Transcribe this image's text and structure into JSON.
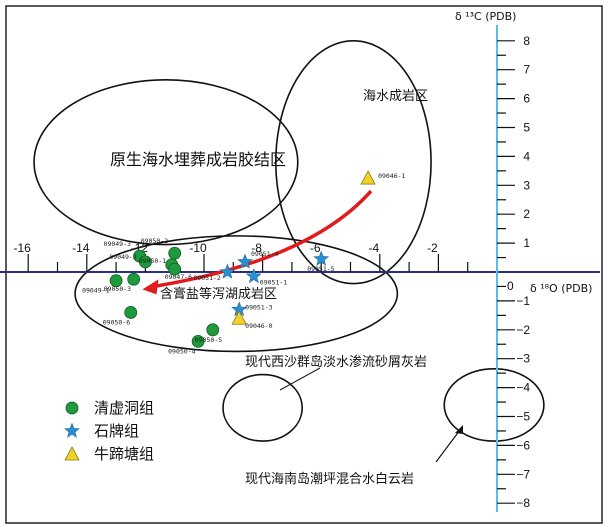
{
  "chart_data": {
    "type": "scatter",
    "x_axis": {
      "label": "δ ¹⁸O (PDB)",
      "range": [
        -17,
        0.5
      ],
      "ticks": [
        -16,
        -14,
        -12,
        -10,
        -8,
        -6,
        -4,
        -2
      ],
      "zero_label": "0"
    },
    "y_axis": {
      "label": "δ ¹³C (PDB)",
      "range": [
        -8,
        8
      ],
      "ticks": [
        8,
        7,
        6,
        5,
        4,
        3,
        2,
        1,
        -1,
        -2,
        -3,
        -4,
        -5,
        -6,
        -7,
        -8
      ]
    },
    "zones": [
      {
        "name": "原生海水埋葬成岩胶结区",
        "cx": -11.3,
        "cy": 3.8,
        "rx": 4.5,
        "ry": 2.85
      },
      {
        "name": "海水成岩区",
        "cx": -4.9,
        "cy": 3.8,
        "rx": 2.65,
        "ry": 4.2
      },
      {
        "name": "含膏盐等泻湖成岩区",
        "cx": -8.9,
        "cy": -0.75,
        "rx": 5.5,
        "ry": 2.0
      },
      {
        "name": "现代西沙群岛淡水渗流砂屑灰岩",
        "cx": -8.0,
        "cy": -4.7,
        "rx": 1.35,
        "ry": 1.15
      },
      {
        "name": "现代海南岛潮坪混合水白云岩",
        "cx": -0.1,
        "cy": -4.6,
        "rx": 1.7,
        "ry": 1.25
      }
    ],
    "series": [
      {
        "name": "清虚洞组",
        "marker": "circle",
        "color": "#1e9a3c",
        "points": [
          {
            "label": "09049-3",
            "x": -12.2,
            "y": 0.55
          },
          {
            "label": "09049-2",
            "x": -12.0,
            "y": 0.35
          },
          {
            "label": "09050-2",
            "x": -11.0,
            "y": 0.65
          },
          {
            "label": "09050-1",
            "x": -11.1,
            "y": 0.25
          },
          {
            "label": "09047-6",
            "x": -11.0,
            "y": 0.1
          },
          {
            "label": "09050-3",
            "x": -12.4,
            "y": -0.25
          },
          {
            "label": "09049-1",
            "x": -13.0,
            "y": -0.3
          },
          {
            "label": "09050-6",
            "x": -12.5,
            "y": -1.4
          },
          {
            "label": "09050-5",
            "x": -9.7,
            "y": -2.0
          },
          {
            "label": "09050-4",
            "x": -10.2,
            "y": -2.4
          }
        ]
      },
      {
        "name": "石牌组",
        "marker": "star",
        "color": "#2a8fd0",
        "points": [
          {
            "label": "09051-2",
            "x": -9.2,
            "y": 0.0
          },
          {
            "label": "09051-4",
            "x": -8.6,
            "y": 0.35
          },
          {
            "label": "09051-1",
            "x": -8.3,
            "y": -0.15
          },
          {
            "label": "09051-3",
            "x": -8.8,
            "y": -1.3
          },
          {
            "label": "09051-5",
            "x": -6.0,
            "y": 0.45
          }
        ]
      },
      {
        "name": "牛蹄塘组",
        "marker": "triangle",
        "color": "#f2d22a",
        "points": [
          {
            "label": "09046-1",
            "x": -4.4,
            "y": 3.25
          },
          {
            "label": "09046-0",
            "x": -8.8,
            "y": -1.6
          }
        ]
      }
    ],
    "annotations": [
      {
        "text": "现代西沙群岛淡水渗流砂屑灰岩"
      },
      {
        "text": "现代海南岛潮坪混合水白云岩"
      }
    ],
    "arrow": {
      "from": [
        -4.3,
        2.8
      ],
      "to": [
        -12.1,
        -0.6
      ],
      "color": "#e01b1b"
    }
  }
}
